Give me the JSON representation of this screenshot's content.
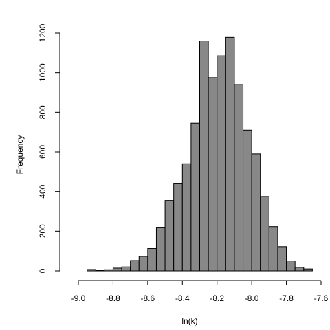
{
  "chart_data": {
    "type": "bar",
    "title": "",
    "xlabel": "ln(k)",
    "ylabel": "Frequency",
    "bin_width": 0.05,
    "x": [
      -8.95,
      -8.9,
      -8.85,
      -8.8,
      -8.75,
      -8.7,
      -8.65,
      -8.6,
      -8.55,
      -8.5,
      -8.45,
      -8.4,
      -8.35,
      -8.3,
      -8.25,
      -8.2,
      -8.15,
      -8.1,
      -8.05,
      -8.0,
      -7.95,
      -7.9,
      -7.85,
      -7.8,
      -7.75,
      -7.7
    ],
    "values": [
      7,
      3,
      6,
      14,
      20,
      52,
      73,
      113,
      220,
      355,
      442,
      540,
      745,
      1160,
      975,
      1085,
      1178,
      940,
      710,
      590,
      375,
      223,
      122,
      50,
      18,
      10
    ],
    "xlim": [
      -9.0,
      -7.6
    ],
    "ylim": [
      0,
      1200
    ],
    "x_ticks": [
      "-9.0",
      "-8.8",
      "-8.6",
      "-8.4",
      "-8.2",
      "-8.0",
      "-7.8",
      "-7.6"
    ],
    "y_ticks": [
      "0",
      "200",
      "400",
      "600",
      "800",
      "1000",
      "1200"
    ],
    "colors": {
      "bar_fill": "#888888",
      "bar_stroke": "#000000"
    }
  }
}
